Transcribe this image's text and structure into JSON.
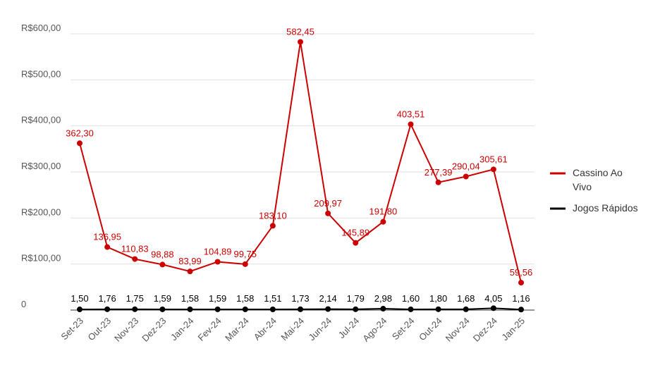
{
  "chart_data": {
    "type": "line",
    "categories": [
      "Set-23",
      "Out-23",
      "Nov-23",
      "Dez-23",
      "Jan-24",
      "Fev-24",
      "Mar-24",
      "Abr-24",
      "Mai-24",
      "Jun-24",
      "Jul-24",
      "Ago-24",
      "Set-24",
      "Out-24",
      "Nov-24",
      "Dez-24",
      "Jan-25"
    ],
    "series": [
      {
        "name": "Cassino Ao Vivo",
        "name_lines": [
          "Cassino Ao",
          "Vivo"
        ],
        "color": "#cc0000",
        "values": [
          362.3,
          136.95,
          110.83,
          98.88,
          83.99,
          104.89,
          99.75,
          183.1,
          582.45,
          209.97,
          145.89,
          191.8,
          403.51,
          277.39,
          290.04,
          305.61,
          59.56
        ],
        "labels": [
          "362,30",
          "136,95",
          "110,83",
          "98,88",
          "83,99",
          "104,89",
          "99,75",
          "183,10",
          "582,45",
          "209,97",
          "145,89",
          "191,80",
          "403,51",
          "277,39",
          "290,04",
          "305,61",
          "59,56"
        ]
      },
      {
        "name": "Jogos Rápidos",
        "name_lines": [
          "Jogos Rápidos"
        ],
        "color": "#000000",
        "values": [
          1.5,
          1.76,
          1.75,
          1.59,
          1.58,
          1.59,
          1.58,
          1.51,
          1.73,
          2.14,
          1.79,
          2.98,
          1.6,
          1.8,
          1.68,
          4.05,
          1.16
        ],
        "labels": [
          "1,50",
          "1,76",
          "1,75",
          "1,59",
          "1,58",
          "1,59",
          "1,58",
          "1,51",
          "1,73",
          "2,14",
          "1,79",
          "2,98",
          "1,60",
          "1,80",
          "1,68",
          "4,05",
          "1,16"
        ]
      }
    ],
    "yticks": [
      0,
      100,
      200,
      300,
      400,
      500,
      600
    ],
    "ytick_labels": [
      "0",
      "R$100,00",
      "R$200,00",
      "R$300,00",
      "R$400,00",
      "R$500,00",
      "R$600,00"
    ],
    "ylim": [
      0,
      600
    ],
    "grid": true,
    "legend_position": "right",
    "title": "",
    "xlabel": "",
    "ylabel": ""
  }
}
